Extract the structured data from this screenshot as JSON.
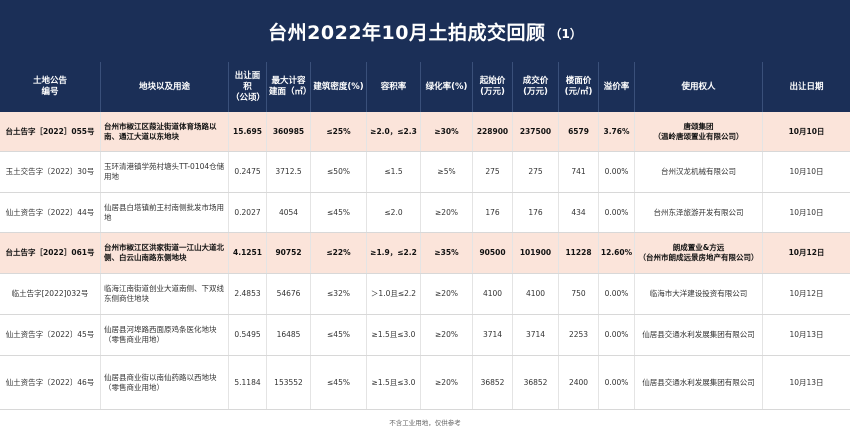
{
  "title": {
    "main": "台州2022年10月土拍成交回顾",
    "sub": "（1）"
  },
  "columns": [
    {
      "key": "notice",
      "label": "土地公告\n编号",
      "w": 100
    },
    {
      "key": "location",
      "label": "地块以及用途",
      "w": 128
    },
    {
      "key": "area",
      "label": "出让面积\n（公顷）",
      "w": 38
    },
    {
      "key": "max_build",
      "label": "最大计容\n建面（㎡）",
      "w": 44
    },
    {
      "key": "density",
      "label": "建筑密度(%)",
      "w": 56
    },
    {
      "key": "far",
      "label": "容积率",
      "w": 54
    },
    {
      "key": "green",
      "label": "绿化率(%)",
      "w": 52
    },
    {
      "key": "start_price",
      "label": "起始价\n(万元)",
      "w": 40
    },
    {
      "key": "deal_price",
      "label": "成交价\n(万元)",
      "w": 46
    },
    {
      "key": "floor_price",
      "label": "楼面价\n(元/㎡)",
      "w": 40
    },
    {
      "key": "premium",
      "label": "溢价率",
      "w": 36
    },
    {
      "key": "owner",
      "label": "使用权人",
      "w": 128
    },
    {
      "key": "date",
      "label": "出让日期",
      "w": 88
    }
  ],
  "rows": [
    {
      "hl": true,
      "h": 40,
      "notice": "台土告字［2022］055号",
      "location": "台州市椒江区葭沚街道体育场路以南、通江大道以东地块",
      "area": "15.695",
      "max_build": "360985",
      "density": "≤25%",
      "far": "≥2.0，≤2.3",
      "green": "≥30%",
      "start_price": "228900",
      "deal_price": "237500",
      "floor_price": "6579",
      "premium": "3.76%",
      "owner": "唐颂集团\n（温岭唐颂置业有限公司）",
      "date": "10月10日"
    },
    {
      "hl": false,
      "h": 41,
      "notice": "玉土交告字〔2022〕30号",
      "location": "玉环清港镇学苑村塘头TT-0104仓储用地",
      "area": "0.2475",
      "max_build": "3712.5",
      "density": "≤50%",
      "far": "≤1.5",
      "green": "≥5%",
      "start_price": "275",
      "deal_price": "275",
      "floor_price": "741",
      "premium": "0.00%",
      "owner": "台州汉龙机械有限公司",
      "date": "10月10日"
    },
    {
      "hl": false,
      "h": 40,
      "notice": "仙土资告字〔2022〕44号",
      "location": "仙居县白塔镇前王村南侧批发市场用地",
      "area": "0.2027",
      "max_build": "4054",
      "density": "≤45%",
      "far": "≤2.0",
      "green": "≥20%",
      "start_price": "176",
      "deal_price": "176",
      "floor_price": "434",
      "premium": "0.00%",
      "owner": "台州东泽旅游开发有限公司",
      "date": "10月10日"
    },
    {
      "hl": true,
      "h": 41,
      "notice": "台土告字［2022］061号",
      "location": "台州市椒江区洪家街道一江山大道北侧、白云山南路东侧地块",
      "area": "4.1251",
      "max_build": "90752",
      "density": "≤22%",
      "far": "≥1.9，≤2.2",
      "green": "≥35%",
      "start_price": "90500",
      "deal_price": "101900",
      "floor_price": "11228",
      "premium": "12.60%",
      "owner": "朗成置业&方远\n（台州市朗成远景房地产有限公司）",
      "date": "10月12日"
    },
    {
      "hl": false,
      "h": 41,
      "notice": "临土告字[2022]032号",
      "location": "临海江南街道创业大道南侧、下双线东侧商住地块",
      "area": "2.4853",
      "max_build": "54676",
      "density": "≤32%",
      "far": "＞1.0且≤2.2",
      "green": "≥20%",
      "start_price": "4100",
      "deal_price": "4100",
      "floor_price": "750",
      "premium": "0.00%",
      "owner": "临海市大洋建设投资有限公司",
      "date": "10月12日"
    },
    {
      "hl": false,
      "h": 41,
      "notice": "仙土资告字〔2022〕45号",
      "location": "仙居县河埠路西面原鸡条医化地块（零售商业用地）",
      "area": "0.5495",
      "max_build": "16485",
      "density": "≤45%",
      "far": "≥1.5且≤3.0",
      "green": "≥20%",
      "start_price": "3714",
      "deal_price": "3714",
      "floor_price": "2253",
      "premium": "0.00%",
      "owner": "仙居县交通水利发展集团有限公司",
      "date": "10月13日"
    },
    {
      "hl": false,
      "h": 54,
      "notice": "仙土资告字〔2022〕46号",
      "location": "仙居县商业街以南仙药路以西地块（零售商业用地）",
      "area": "5.1184",
      "max_build": "153552",
      "density": "≤45%",
      "far": "≥1.5且≤3.0",
      "green": "≥20%",
      "start_price": "36852",
      "deal_price": "36852",
      "floor_price": "2400",
      "premium": "0.00%",
      "owner": "仙居县交通水利发展集团有限公司",
      "date": "10月13日"
    }
  ],
  "footer": "不含工业用地，仅供参考",
  "colors": {
    "header_bg": "#1b2f57",
    "highlight_bg": "#fbe4da"
  }
}
